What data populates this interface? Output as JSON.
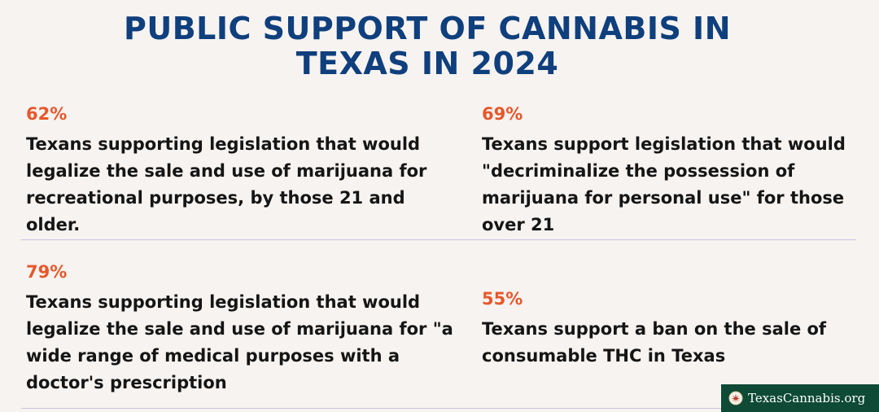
{
  "title": {
    "line1": "PUBLIC SUPPORT OF CANNABIS IN",
    "line2": "TEXAS IN 2024"
  },
  "stats": [
    {
      "percent": "62%",
      "text": "Texans supporting legislation that would legalize the sale and use of marijuana for recreational purposes, by those 21 and older."
    },
    {
      "percent": "69%",
      "text": "Texans support legislation that would \"decriminalize the possession of marijuana for personal use\" for those over 21"
    },
    {
      "percent": "79%",
      "text": "Texans supporting legislation that would legalize the sale and use of marijuana for \"a wide range of medical purposes with a doctor's prescription"
    },
    {
      "percent": "55%",
      "text": "Texans support a ban on the sale of consumable THC in Texas"
    }
  ],
  "footer": {
    "site": "TexasCannabis.org",
    "logo_icon": "cannabis-leaf-seal-icon"
  },
  "colors": {
    "title": "#0f3f7c",
    "percent": "#e6572a",
    "body_text": "#151515",
    "background": "#f6f3f1",
    "badge_bg": "#0e4a36"
  }
}
